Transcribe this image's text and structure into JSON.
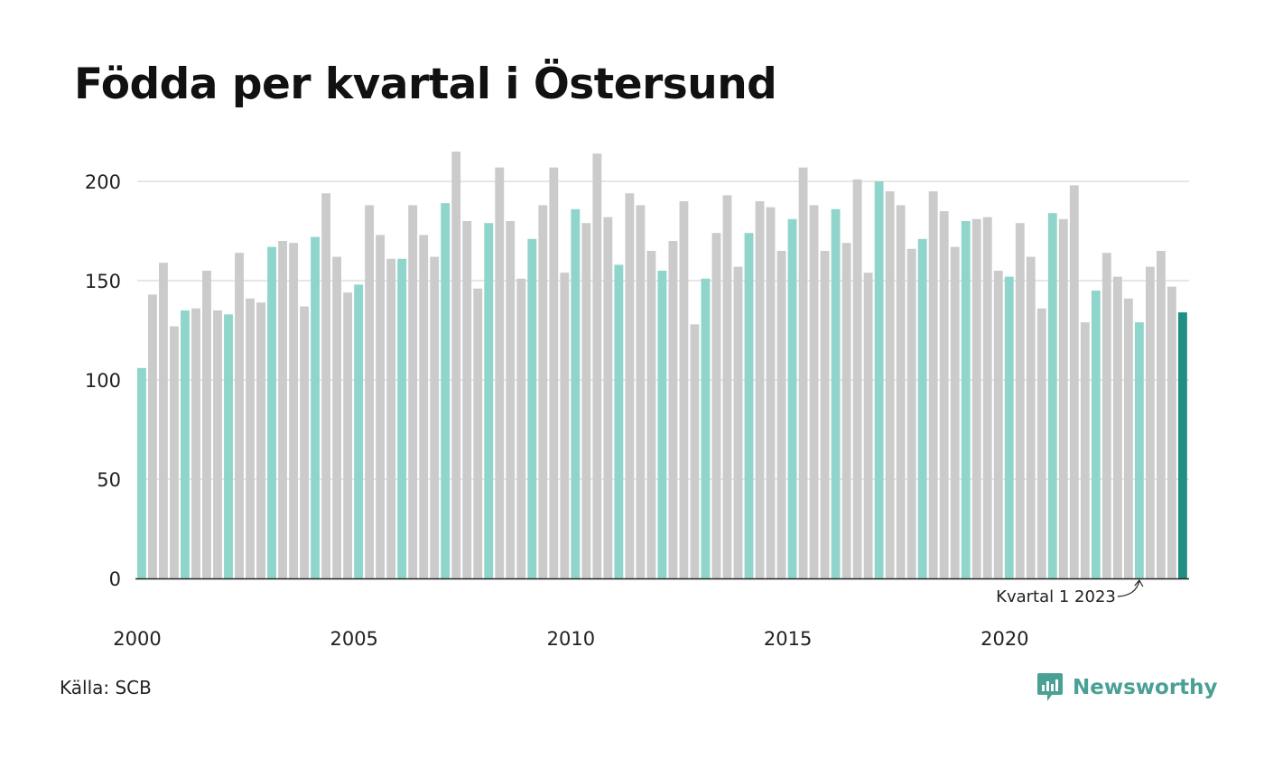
{
  "title": "Födda per kvartal i Östersund",
  "source": "Källa: SCB",
  "brand": "Newsworthy",
  "colors": {
    "q1": "#8fd5cc",
    "other": "#cbcbcb",
    "latest": "#1e8f82",
    "brand": "#4aa095"
  },
  "chart_data": {
    "type": "bar",
    "title": "Födda per kvartal i Östersund",
    "xlabel": "",
    "ylabel": "",
    "ylim": [
      0,
      220
    ],
    "y_ticks": [
      0,
      50,
      100,
      150,
      200
    ],
    "x_ticks": [
      "2000",
      "2005",
      "2010",
      "2015",
      "2020"
    ],
    "grid": true,
    "start_year": 2000,
    "annotation": {
      "text": "Kvartal 1 2023"
    },
    "values": [
      106,
      143,
      159,
      127,
      135,
      136,
      155,
      135,
      133,
      164,
      141,
      139,
      167,
      170,
      169,
      137,
      172,
      194,
      162,
      144,
      148,
      188,
      173,
      161,
      161,
      188,
      173,
      162,
      189,
      215,
      180,
      146,
      179,
      207,
      180,
      151,
      171,
      188,
      207,
      154,
      186,
      179,
      214,
      182,
      158,
      194,
      188,
      165,
      155,
      170,
      190,
      128,
      151,
      174,
      193,
      157,
      174,
      190,
      187,
      165,
      181,
      207,
      188,
      165,
      186,
      169,
      201,
      154,
      200,
      195,
      188,
      166,
      171,
      195,
      185,
      167,
      180,
      181,
      182,
      155,
      152,
      179,
      162,
      136,
      184,
      181,
      198,
      129,
      145,
      164,
      152,
      141,
      129,
      157,
      165,
      147,
      134
    ]
  }
}
